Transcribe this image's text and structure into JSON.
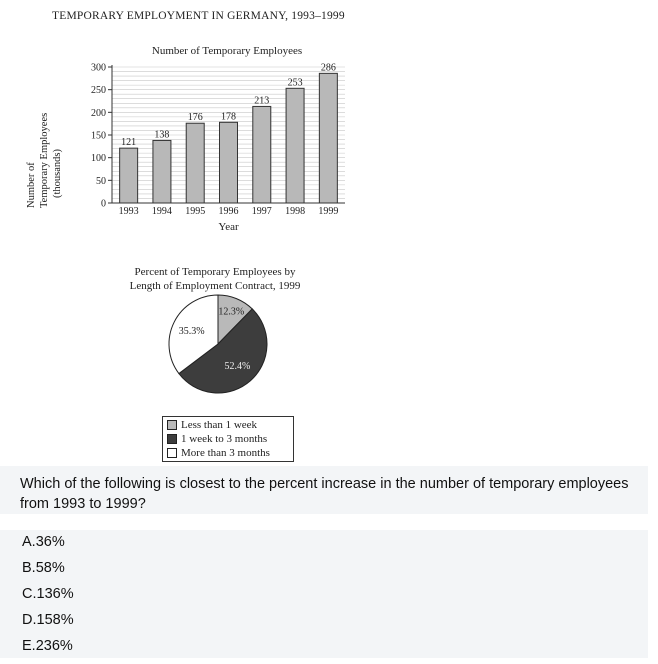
{
  "figure": {
    "main_title": "TEMPORARY EMPLOYMENT IN GERMANY, 1993–1999"
  },
  "chart_data": [
    {
      "type": "bar",
      "title": "Number of Temporary Employees",
      "xlabel": "Year",
      "ylabel": "Number of Temporary Employees (thousands)",
      "ylabel_lines": [
        "Number of",
        "Temporary Employees",
        "(thousands)"
      ],
      "categories": [
        "1993",
        "1994",
        "1995",
        "1996",
        "1997",
        "1998",
        "1999"
      ],
      "values": [
        121,
        138,
        176,
        178,
        213,
        253,
        286
      ],
      "yticks": [
        0,
        50,
        100,
        150,
        200,
        250,
        300
      ],
      "ylim": [
        0,
        300
      ],
      "grid": true,
      "bar_color": "#b8b8b8"
    },
    {
      "type": "pie",
      "title_lines": [
        "Percent of Temporary Employees by",
        "Length of Employment Contract, 1999"
      ],
      "slices": [
        {
          "label": "Less than 1 week",
          "value": 12.3,
          "display": "12.3%",
          "color": "#b9b9b9"
        },
        {
          "label": "1 week to 3 months",
          "value": 52.4,
          "display": "52.4%",
          "color": "#3d3d3d"
        },
        {
          "label": "More than 3 months",
          "value": 35.3,
          "display": "35.3%",
          "color": "#ffffff"
        }
      ],
      "legend_placement": "bottom"
    }
  ],
  "question": {
    "text": "Which of the following is closest to the percent increase in the number of temporary employees from 1993 to 1999?"
  },
  "options": [
    {
      "label": "A.36%"
    },
    {
      "label": "B.58%"
    },
    {
      "label": "C.136%"
    },
    {
      "label": "D.158%"
    },
    {
      "label": "E.236%"
    }
  ]
}
